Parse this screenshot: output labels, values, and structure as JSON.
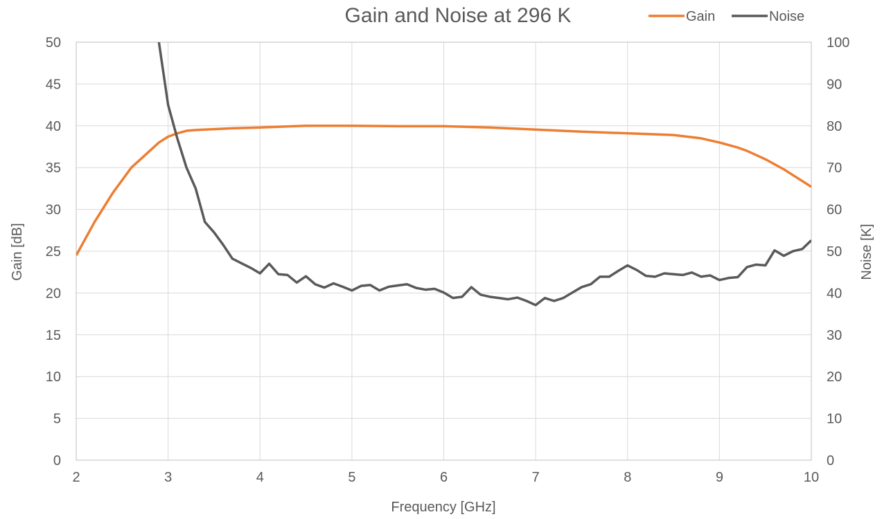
{
  "chart_data": {
    "type": "line",
    "title": "Gain and Noise at 296 K",
    "xlabel": "Frequency [GHz]",
    "ylabel_left": "Gain [dB]",
    "ylabel_right": "Noise [K]",
    "xlim": [
      2,
      10
    ],
    "ylim_left": [
      0,
      50
    ],
    "ylim_right": [
      0,
      100
    ],
    "x_ticks": [
      "2",
      "3",
      "4",
      "5",
      "6",
      "7",
      "8",
      "9",
      "10"
    ],
    "y_left_ticks": [
      "0",
      "5",
      "10",
      "15",
      "20",
      "25",
      "30",
      "35",
      "40",
      "45",
      "50"
    ],
    "y_right_ticks": [
      "0",
      "10",
      "20",
      "30",
      "40",
      "50",
      "60",
      "70",
      "80",
      "90",
      "100"
    ],
    "grid": true,
    "legend_position": "top-right",
    "series": [
      {
        "name": "Gain",
        "axis": "left",
        "color": "#ed7d31",
        "x": [
          2.0,
          2.2,
          2.4,
          2.6,
          2.8,
          2.9,
          3.0,
          3.1,
          3.2,
          3.3,
          3.5,
          3.7,
          4.0,
          4.5,
          5.0,
          5.5,
          6.0,
          6.5,
          7.0,
          7.5,
          8.0,
          8.5,
          8.8,
          9.0,
          9.2,
          9.3,
          9.4,
          9.5,
          9.6,
          9.7,
          9.8,
          9.9,
          10.0
        ],
        "values": [
          24.5,
          28.5,
          32.0,
          35.0,
          37.0,
          38.0,
          38.7,
          39.1,
          39.4,
          39.5,
          39.6,
          39.7,
          39.8,
          40.0,
          40.0,
          39.95,
          39.95,
          39.8,
          39.55,
          39.3,
          39.1,
          38.9,
          38.5,
          38.0,
          37.4,
          37.0,
          36.5,
          36.0,
          35.4,
          34.8,
          34.1,
          33.4,
          32.7
        ]
      },
      {
        "name": "Noise",
        "axis": "right",
        "color": "#595959",
        "x": [
          2.9,
          3.0,
          3.1,
          3.2,
          3.3,
          3.4,
          3.5,
          3.6,
          3.7,
          3.8,
          3.9,
          4.0,
          4.1,
          4.2,
          4.3,
          4.4,
          4.5,
          4.6,
          4.7,
          4.8,
          4.9,
          5.0,
          5.1,
          5.2,
          5.3,
          5.4,
          5.5,
          5.6,
          5.7,
          5.8,
          5.9,
          6.0,
          6.1,
          6.2,
          6.3,
          6.4,
          6.5,
          6.6,
          6.7,
          6.8,
          6.9,
          7.0,
          7.1,
          7.2,
          7.3,
          7.4,
          7.5,
          7.6,
          7.7,
          7.8,
          7.9,
          8.0,
          8.1,
          8.2,
          8.3,
          8.4,
          8.5,
          8.6,
          8.7,
          8.8,
          8.9,
          9.0,
          9.1,
          9.2,
          9.3,
          9.4,
          9.5,
          9.6,
          9.7,
          9.8,
          9.9,
          10.0
        ],
        "values": [
          100,
          85,
          77,
          70,
          65,
          57,
          54.5,
          51.5,
          48.2,
          47.1,
          46,
          44.7,
          47,
          44.5,
          44.3,
          42.5,
          44,
          42.1,
          41.3,
          42.3,
          41.5,
          40.6,
          41.7,
          41.9,
          40.6,
          41.5,
          41.8,
          42.1,
          41.2,
          40.8,
          41,
          40.1,
          38.8,
          39.1,
          41.4,
          39.6,
          39.1,
          38.8,
          38.5,
          38.9,
          38.1,
          37.1,
          38.8,
          38.1,
          38.8,
          40.1,
          41.4,
          42.1,
          43.9,
          43.9,
          45.3,
          46.6,
          45.5,
          44.1,
          43.9,
          44.7,
          44.5,
          44.3,
          44.9,
          43.9,
          44.2,
          43.1,
          43.6,
          43.8,
          46.2,
          46.8,
          46.6,
          50.2,
          48.9,
          50,
          50.5,
          52.6
        ]
      }
    ]
  }
}
